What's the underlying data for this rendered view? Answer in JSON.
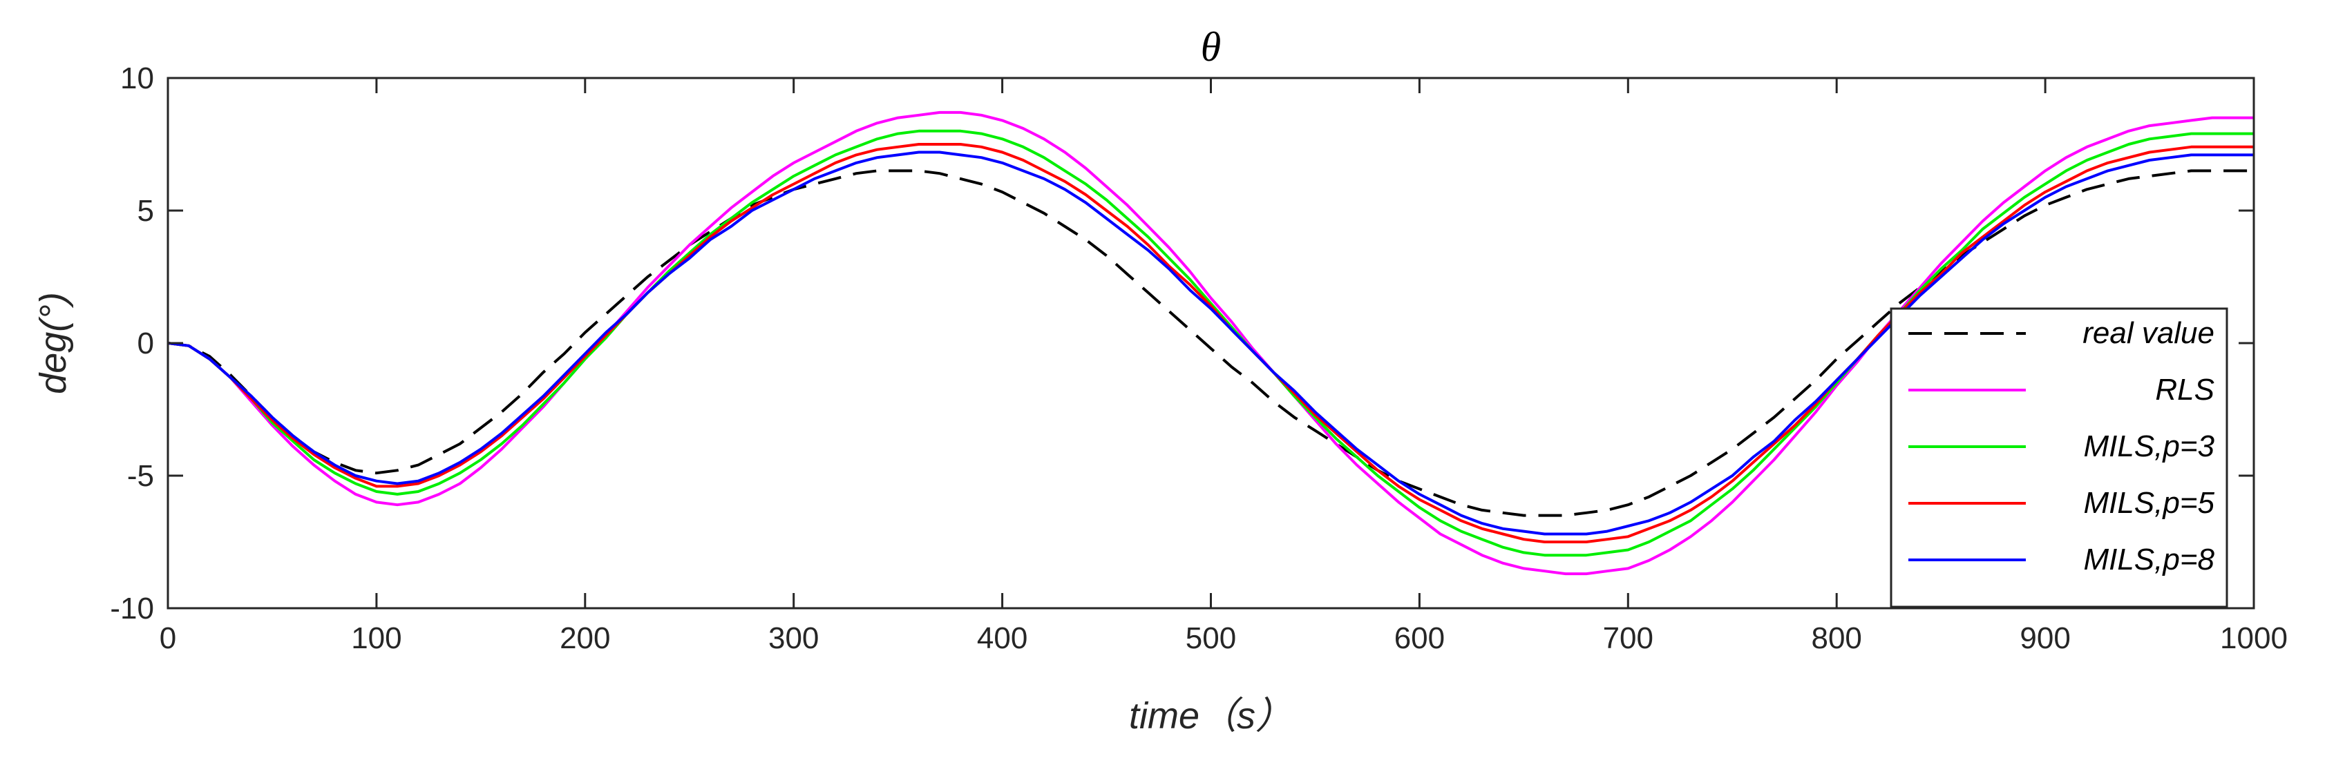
{
  "chart_data": {
    "type": "line",
    "title": "θ",
    "xlabel": "time（s）",
    "ylabel": "deg(°)",
    "xlim": [
      0,
      1000
    ],
    "ylim": [
      -10,
      10
    ],
    "xticks": [
      0,
      100,
      200,
      300,
      400,
      500,
      600,
      700,
      800,
      900,
      1000
    ],
    "yticks": [
      -10,
      -5,
      0,
      5,
      10
    ],
    "xtick_labels": [
      "0",
      "100",
      "200",
      "300",
      "400",
      "500",
      "600",
      "700",
      "800",
      "900",
      "1000"
    ],
    "ytick_labels": [
      "-10",
      "-5",
      "0",
      "5",
      "10"
    ],
    "grid": false,
    "legend_position": "lower-right",
    "x": [
      0,
      10,
      20,
      30,
      40,
      50,
      60,
      70,
      80,
      90,
      100,
      110,
      120,
      130,
      140,
      150,
      160,
      170,
      180,
      190,
      200,
      210,
      220,
      230,
      240,
      250,
      260,
      270,
      280,
      290,
      300,
      310,
      320,
      330,
      340,
      350,
      360,
      370,
      380,
      390,
      400,
      410,
      420,
      430,
      440,
      450,
      460,
      470,
      480,
      490,
      500,
      510,
      520,
      530,
      540,
      550,
      560,
      570,
      580,
      590,
      600,
      610,
      620,
      630,
      640,
      650,
      660,
      670,
      680,
      690,
      700,
      710,
      720,
      730,
      740,
      750,
      760,
      770,
      780,
      790,
      800,
      810,
      820,
      830,
      840,
      850,
      860,
      870,
      880,
      890,
      900,
      910,
      920,
      930,
      940,
      950,
      960,
      970,
      980,
      990,
      1000
    ],
    "series": [
      {
        "name": "real value",
        "color": "#000000",
        "dash": "dashed",
        "values": [
          0.0,
          -0.1,
          -0.5,
          -1.2,
          -2.0,
          -2.8,
          -3.5,
          -4.1,
          -4.5,
          -4.8,
          -4.9,
          -4.8,
          -4.6,
          -4.2,
          -3.8,
          -3.2,
          -2.6,
          -1.9,
          -1.1,
          -0.4,
          0.4,
          1.1,
          1.8,
          2.5,
          3.1,
          3.7,
          4.2,
          4.7,
          5.2,
          5.5,
          5.8,
          6.0,
          6.2,
          6.4,
          6.5,
          6.5,
          6.5,
          6.4,
          6.2,
          6.0,
          5.7,
          5.3,
          4.9,
          4.4,
          3.9,
          3.3,
          2.6,
          1.9,
          1.2,
          0.5,
          -0.2,
          -0.9,
          -1.5,
          -2.2,
          -2.8,
          -3.3,
          -3.8,
          -4.3,
          -4.8,
          -5.2,
          -5.5,
          -5.8,
          -6.1,
          -6.3,
          -6.4,
          -6.5,
          -6.5,
          -6.5,
          -6.4,
          -6.3,
          -6.1,
          -5.8,
          -5.4,
          -5.0,
          -4.5,
          -4.0,
          -3.4,
          -2.8,
          -2.1,
          -1.4,
          -0.6,
          0.1,
          0.8,
          1.5,
          2.1,
          2.7,
          3.3,
          3.8,
          4.3,
          4.8,
          5.2,
          5.5,
          5.8,
          6.0,
          6.2,
          6.3,
          6.4,
          6.5,
          6.5,
          6.5,
          6.5
        ]
      },
      {
        "name": "RLS",
        "color": "#ff00ff",
        "dash": "solid",
        "values": [
          0.0,
          -0.1,
          -0.6,
          -1.3,
          -2.2,
          -3.1,
          -3.9,
          -4.6,
          -5.2,
          -5.7,
          -6.0,
          -6.1,
          -6.0,
          -5.7,
          -5.3,
          -4.7,
          -4.0,
          -3.2,
          -2.4,
          -1.5,
          -0.6,
          0.3,
          1.2,
          2.1,
          2.9,
          3.7,
          4.4,
          5.1,
          5.7,
          6.3,
          6.8,
          7.2,
          7.6,
          8.0,
          8.3,
          8.5,
          8.6,
          8.7,
          8.7,
          8.6,
          8.4,
          8.1,
          7.7,
          7.2,
          6.6,
          5.9,
          5.2,
          4.4,
          3.6,
          2.7,
          1.7,
          0.8,
          -0.2,
          -1.1,
          -2.0,
          -2.9,
          -3.8,
          -4.6,
          -5.3,
          -6.0,
          -6.6,
          -7.2,
          -7.6,
          -8.0,
          -8.3,
          -8.5,
          -8.6,
          -8.7,
          -8.7,
          -8.6,
          -8.5,
          -8.2,
          -7.8,
          -7.3,
          -6.7,
          -6.0,
          -5.2,
          -4.4,
          -3.5,
          -2.6,
          -1.6,
          -0.7,
          0.3,
          1.2,
          2.1,
          3.0,
          3.8,
          4.6,
          5.3,
          5.9,
          6.5,
          7.0,
          7.4,
          7.7,
          8.0,
          8.2,
          8.3,
          8.4,
          8.5,
          8.5,
          8.5
        ]
      },
      {
        "name": "MILS,p=3",
        "color": "#00ee00",
        "dash": "solid",
        "values": [
          0.0,
          -0.1,
          -0.6,
          -1.3,
          -2.1,
          -3.0,
          -3.7,
          -4.4,
          -4.9,
          -5.3,
          -5.6,
          -5.7,
          -5.6,
          -5.3,
          -4.9,
          -4.4,
          -3.8,
          -3.1,
          -2.3,
          -1.5,
          -0.6,
          0.2,
          1.1,
          1.9,
          2.7,
          3.4,
          4.1,
          4.7,
          5.3,
          5.8,
          6.3,
          6.7,
          7.1,
          7.4,
          7.7,
          7.9,
          8.0,
          8.0,
          8.0,
          7.9,
          7.7,
          7.4,
          7.0,
          6.5,
          6.0,
          5.4,
          4.7,
          4.0,
          3.2,
          2.4,
          1.5,
          0.6,
          -0.3,
          -1.1,
          -2.0,
          -2.8,
          -3.6,
          -4.3,
          -5.0,
          -5.6,
          -6.2,
          -6.7,
          -7.1,
          -7.4,
          -7.7,
          -7.9,
          -8.0,
          -8.0,
          -8.0,
          -7.9,
          -7.8,
          -7.5,
          -7.1,
          -6.7,
          -6.1,
          -5.5,
          -4.8,
          -4.0,
          -3.2,
          -2.4,
          -1.5,
          -0.6,
          0.3,
          1.1,
          2.0,
          2.8,
          3.5,
          4.3,
          4.9,
          5.5,
          6.0,
          6.5,
          6.9,
          7.2,
          7.5,
          7.7,
          7.8,
          7.9,
          7.9,
          7.9,
          7.9
        ]
      },
      {
        "name": "MILS,p=5",
        "color": "#ff0000",
        "dash": "solid",
        "values": [
          0.0,
          -0.1,
          -0.6,
          -1.3,
          -2.1,
          -2.9,
          -3.6,
          -4.2,
          -4.7,
          -5.1,
          -5.4,
          -5.4,
          -5.3,
          -5.0,
          -4.6,
          -4.1,
          -3.5,
          -2.8,
          -2.1,
          -1.3,
          -0.5,
          0.3,
          1.1,
          1.9,
          2.6,
          3.3,
          4.0,
          4.6,
          5.1,
          5.6,
          6.0,
          6.4,
          6.8,
          7.1,
          7.3,
          7.4,
          7.5,
          7.5,
          7.5,
          7.4,
          7.2,
          6.9,
          6.5,
          6.1,
          5.6,
          5.0,
          4.4,
          3.7,
          2.9,
          2.2,
          1.4,
          0.5,
          -0.3,
          -1.1,
          -1.9,
          -2.7,
          -3.4,
          -4.1,
          -4.8,
          -5.4,
          -5.9,
          -6.3,
          -6.7,
          -7.0,
          -7.2,
          -7.4,
          -7.5,
          -7.5,
          -7.5,
          -7.4,
          -7.3,
          -7.0,
          -6.7,
          -6.3,
          -5.8,
          -5.2,
          -4.5,
          -3.8,
          -3.1,
          -2.3,
          -1.4,
          -0.6,
          0.3,
          1.1,
          1.9,
          2.6,
          3.4,
          4.0,
          4.6,
          5.2,
          5.7,
          6.1,
          6.5,
          6.8,
          7.0,
          7.2,
          7.3,
          7.4,
          7.4,
          7.4,
          7.4
        ]
      },
      {
        "name": "MILS,p=8",
        "color": "#0000ff",
        "dash": "solid",
        "values": [
          0.0,
          -0.1,
          -0.6,
          -1.3,
          -2.0,
          -2.8,
          -3.5,
          -4.1,
          -4.6,
          -5.0,
          -5.2,
          -5.3,
          -5.2,
          -4.9,
          -4.5,
          -4.0,
          -3.4,
          -2.7,
          -2.0,
          -1.2,
          -0.4,
          0.4,
          1.1,
          1.9,
          2.6,
          3.2,
          3.9,
          4.4,
          5.0,
          5.4,
          5.8,
          6.2,
          6.5,
          6.8,
          7.0,
          7.1,
          7.2,
          7.2,
          7.1,
          7.0,
          6.8,
          6.5,
          6.2,
          5.8,
          5.3,
          4.7,
          4.1,
          3.5,
          2.8,
          2.0,
          1.3,
          0.5,
          -0.3,
          -1.1,
          -1.8,
          -2.6,
          -3.3,
          -4.0,
          -4.6,
          -5.2,
          -5.7,
          -6.1,
          -6.5,
          -6.8,
          -7.0,
          -7.1,
          -7.2,
          -7.2,
          -7.2,
          -7.1,
          -6.9,
          -6.7,
          -6.4,
          -6.0,
          -5.5,
          -5.0,
          -4.3,
          -3.7,
          -2.9,
          -2.2,
          -1.4,
          -0.6,
          0.2,
          1.0,
          1.8,
          2.5,
          3.2,
          3.9,
          4.5,
          5.0,
          5.5,
          5.9,
          6.2,
          6.5,
          6.7,
          6.9,
          7.0,
          7.1,
          7.1,
          7.1,
          7.1
        ]
      }
    ]
  }
}
